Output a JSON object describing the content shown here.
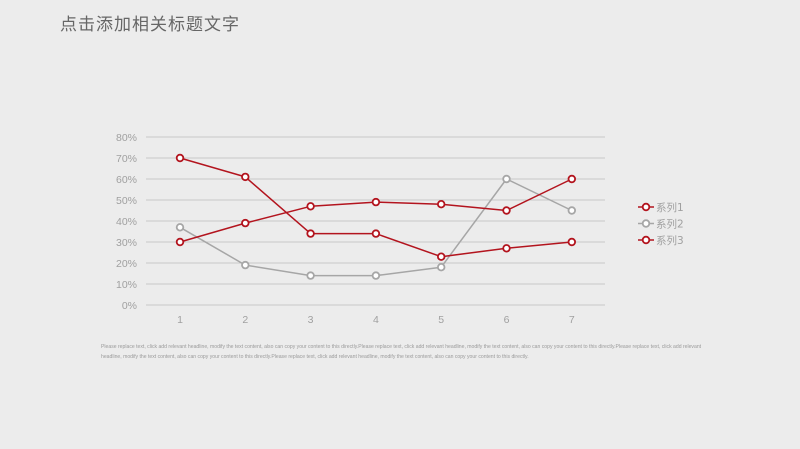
{
  "title": "点击添加相关标题文字",
  "body_text": "Please replace text, click add relevant headline, modify the text content, also can copy your content to this directly.Please replace text, click add relevant headline, modify the text content, also can copy your content to this directly.Please replace text, click add relevant headline, modify the text content, also can copy your content to this directly.Please replace text, click add relevant headline, modify the text content, also can copy your content to this directly.",
  "colors": {
    "dark_red": "#b3141e",
    "gray": "#a6a6a6",
    "gridline": "#c8c8c8",
    "tick_text": "#a0a0a0"
  },
  "chart_data": {
    "type": "line",
    "categories": [
      "1",
      "2",
      "3",
      "4",
      "5",
      "6",
      "7"
    ],
    "yticks": [
      "0%",
      "10%",
      "20%",
      "30%",
      "40%",
      "50%",
      "60%",
      "70%",
      "80%"
    ],
    "ylim": [
      0,
      80
    ],
    "grid": true,
    "legend_position": "right",
    "series": [
      {
        "name": "系列1",
        "color": "#b3141e",
        "values": [
          70,
          61,
          34,
          34,
          23,
          27,
          30
        ]
      },
      {
        "name": "系列2",
        "color": "#a6a6a6",
        "values": [
          37,
          19,
          14,
          14,
          18,
          60,
          45
        ]
      },
      {
        "name": "系列3",
        "color": "#b3141e",
        "values": [
          30,
          39,
          47,
          49,
          48,
          45,
          60
        ]
      }
    ]
  }
}
